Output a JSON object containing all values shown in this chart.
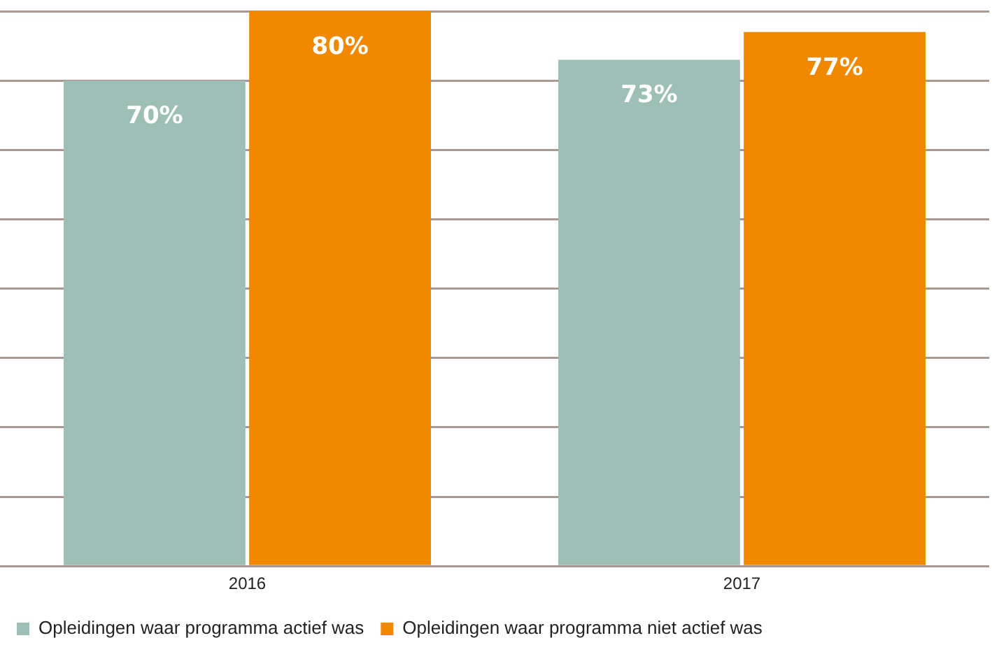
{
  "chart_data": {
    "type": "bar",
    "categories": [
      "2016",
      "2017"
    ],
    "series": [
      {
        "name": "Opleidingen waar programma actief was",
        "color": "#9dbfb5",
        "values": [
          70,
          73
        ],
        "value_labels": [
          "70%",
          "73%"
        ]
      },
      {
        "name": "Opleidingen waar programma niet actief was",
        "color": "#f08800",
        "values": [
          80,
          77
        ],
        "value_labels": [
          "80%",
          "77%"
        ]
      }
    ],
    "tick_labels": "x",
    "grid": "y",
    "legend": "bottom left"
  }
}
